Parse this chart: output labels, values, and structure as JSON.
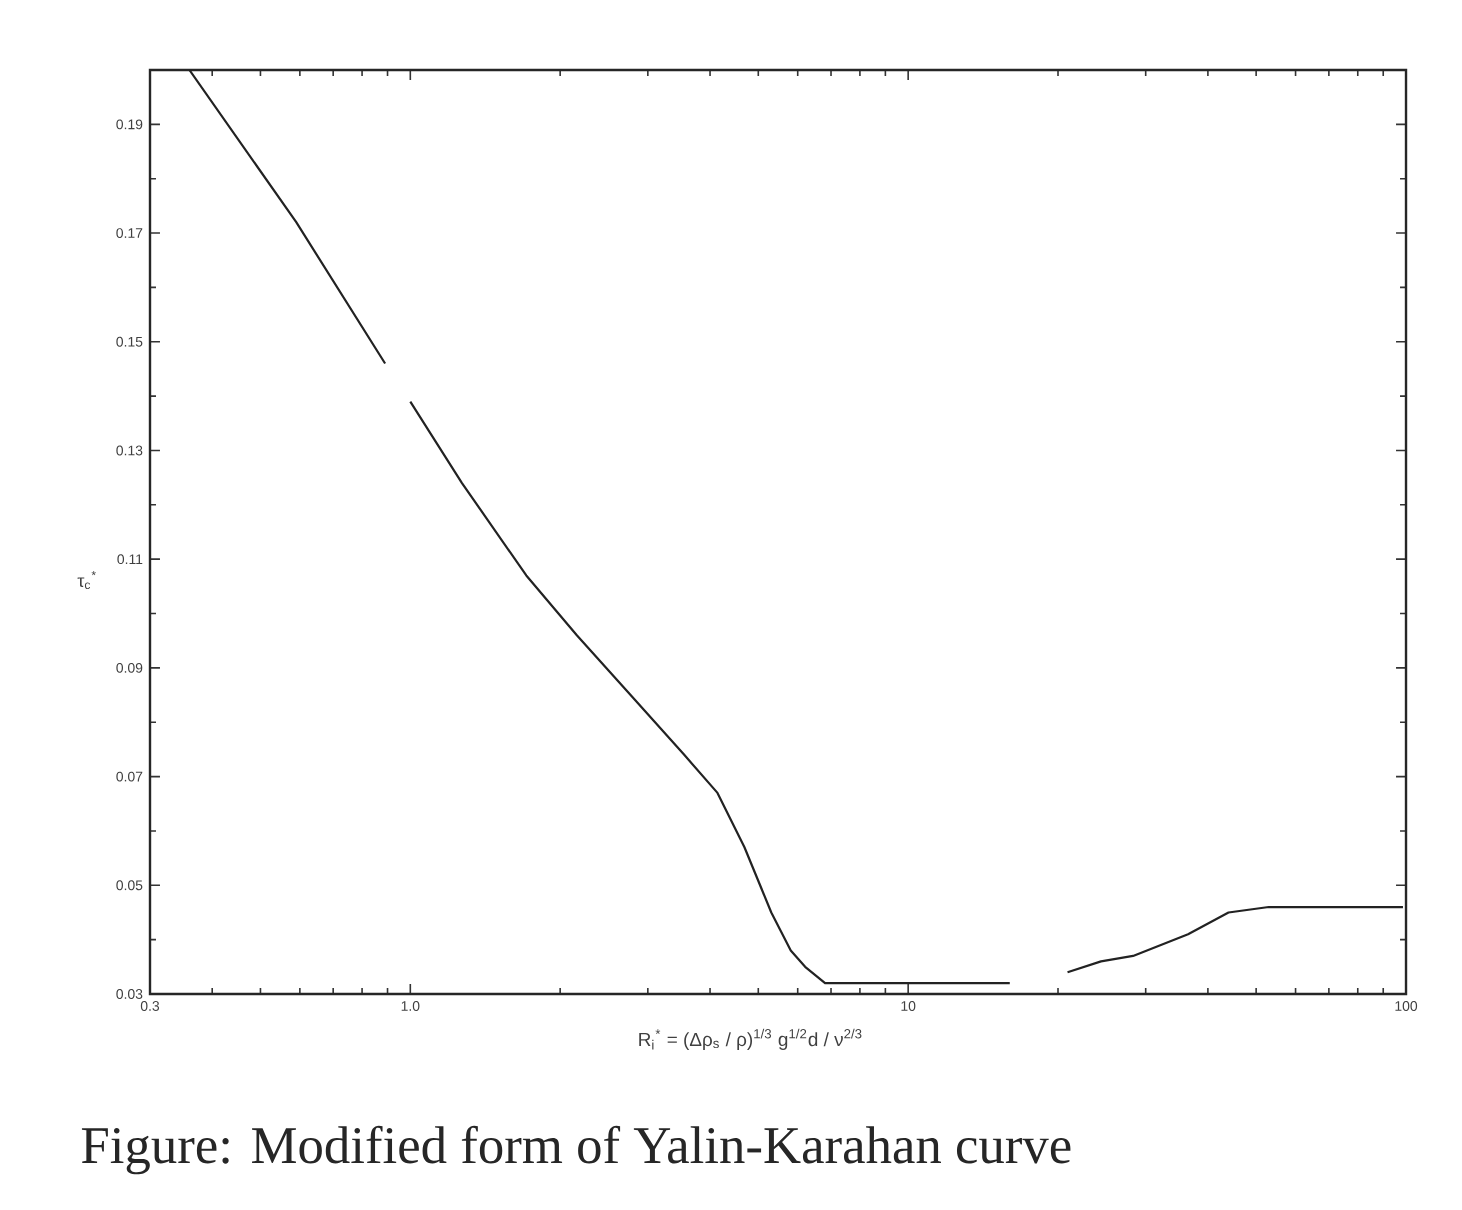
{
  "chart_data": {
    "type": "line",
    "xlabel": "R$_{i}$$^{*}$ = (Δρ$_{s}$ / ρ)$^{1/3}$ g$^{1/2}$d / ν$^{2/3}$",
    "ylabel": "τ$_{c}$$^{*}$",
    "annotations": [
      "Figure: Modified form of Yalin-Karahan curve"
    ],
    "log": "x",
    "x": [
      0.36,
      0.59,
      0.89,
      0.95,
      1.0,
      1.27,
      1.71,
      2.16,
      2.77,
      3.55,
      4.14,
      4.69,
      5.31,
      5.81,
      6.21,
      6.81,
      7.48,
      10,
      16,
      18,
      20.9,
      24.4,
      28.3,
      36.5,
      44,
      53,
      63.8,
      98.6
    ],
    "series": [
      {
        "color": "#222222",
        "values": [
          0.2,
          0.172,
          0.146,
          null,
          0.139,
          0.124,
          0.107,
          0.096,
          0.085,
          0.074,
          0.067,
          0.057,
          0.045,
          0.038,
          0.035,
          0.032,
          0.032,
          0.032,
          0.032,
          null,
          0.034,
          0.036,
          0.037,
          0.041,
          0.045,
          0.046,
          0.046,
          0.046
        ]
      }
    ],
    "xlim": [
      0.3,
      100
    ],
    "ylim": [
      0.03,
      0.2
    ],
    "xticks": [
      0.3,
      {
        "value": 1,
        "label": "1.0"
      },
      10,
      100
    ],
    "yticks": [
      0.03,
      0.05,
      0.07,
      0.09,
      0.11,
      0.13,
      0.15,
      0.17,
      0.19
    ],
    "marker": "none",
    "line_style": "solid"
  }
}
